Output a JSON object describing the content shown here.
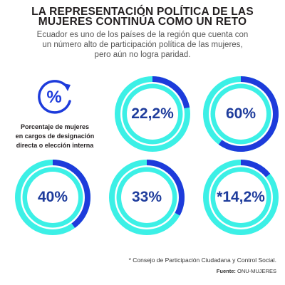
{
  "header": {
    "title_line1": "LA REPRESENTACIÓN POLÍTICA DE LAS",
    "title_line2": "MUJERES CONTINÚA COMO UN RETO",
    "subtitle_line1": "Ecuador es uno de los países de la región que cuenta con",
    "subtitle_line2": "un número alto de participación política de las mujeres,",
    "subtitle_line3": "pero aún no logra paridad."
  },
  "icon": {
    "name": "percent-cycle-icon",
    "symbol": "%"
  },
  "description": {
    "line1": "Porcentaje de mujeres",
    "line2": "en cargos de designación",
    "line3": "directa o elección interna"
  },
  "colors": {
    "dark_blue": "#1d3bdb",
    "cyan": "#3cf0e6",
    "ring_white": "#ffffff",
    "value_text": "#1e3c9c"
  },
  "chart_data": {
    "type": "donut",
    "unit": "%",
    "items": [
      {
        "label": "22,2%",
        "value": 22.2
      },
      {
        "label": "60%",
        "value": 60
      },
      {
        "label": "40%",
        "value": 40
      },
      {
        "label": "33%",
        "value": 33
      },
      {
        "label": "*14,2%",
        "value": 14.2
      }
    ]
  },
  "footnote": "* Consejo de Participación Ciudadana y Control Social.",
  "source": {
    "label": "Fuente:",
    "value": "ONU-MUJERES"
  }
}
